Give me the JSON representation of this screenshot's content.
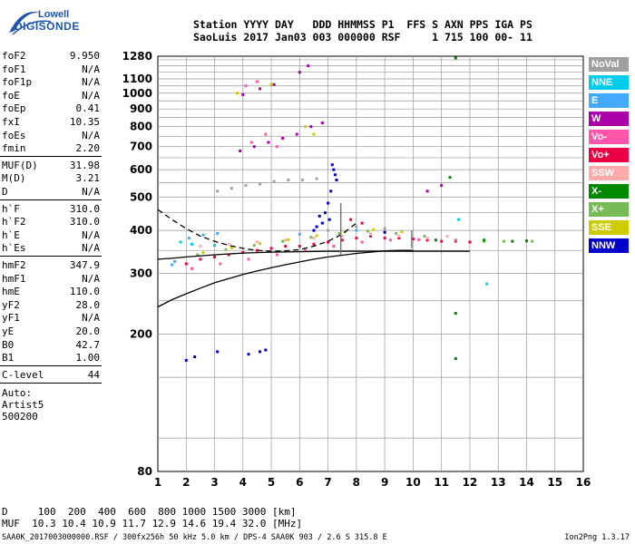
{
  "logo": {
    "line1": "Lowell",
    "line2": "DIGISONDE"
  },
  "header": {
    "line1": "Station YYYY DAY   DDD HHMMSS P1  FFS S AXN PPS IGA PS",
    "line2": "SaoLuis 2017 Jan03 003 000000 RSF     1 715 100 00- 11"
  },
  "params": [
    {
      "label": "foF2",
      "value": "9.950"
    },
    {
      "label": "foF1",
      "value": "N/A"
    },
    {
      "label": "foF1p",
      "value": "N/A"
    },
    {
      "label": "foE",
      "value": "N/A"
    },
    {
      "label": "foEp",
      "value": "0.41"
    },
    {
      "label": "fxI",
      "value": "10.35"
    },
    {
      "label": "foEs",
      "value": "N/A"
    },
    {
      "label": "fmin",
      "value": "2.20"
    },
    {
      "label": "MUF(D)",
      "value": "31.98"
    },
    {
      "label": "M(D)",
      "value": "3.21"
    },
    {
      "label": "D",
      "value": "N/A"
    },
    {
      "label": "h`F",
      "value": "310.0"
    },
    {
      "label": "h`F2",
      "value": "310.0"
    },
    {
      "label": "h`E",
      "value": "N/A"
    },
    {
      "label": "h`Es",
      "value": "N/A"
    },
    {
      "label": "hmF2",
      "value": "347.9"
    },
    {
      "label": "hmF1",
      "value": "N/A"
    },
    {
      "label": "hmE",
      "value": "110.0"
    },
    {
      "label": "yF2",
      "value": "28.0"
    },
    {
      "label": "yF1",
      "value": "N/A"
    },
    {
      "label": "yE",
      "value": "20.0"
    },
    {
      "label": "B0",
      "value": "42.7"
    },
    {
      "label": "B1",
      "value": "1.00"
    },
    {
      "label": "C-level",
      "value": "44"
    }
  ],
  "auto": {
    "line1": "Auto:",
    "line2": "Artist5",
    "line3": "500200"
  },
  "legend": [
    {
      "label": "NoVal",
      "color": "#a0a0a0"
    },
    {
      "label": "NNE",
      "color": "#00ccee"
    },
    {
      "label": "E",
      "color": "#44aaff"
    },
    {
      "label": "W",
      "color": "#aa00aa"
    },
    {
      "label": "Vo-",
      "color": "#ff55aa"
    },
    {
      "label": "Vo+",
      "color": "#ee0044"
    },
    {
      "label": "SSW",
      "color": "#ffaaaa"
    },
    {
      "label": "X-",
      "color": "#008800"
    },
    {
      "label": "X+",
      "color": "#77bb55"
    },
    {
      "label": "SSE",
      "color": "#cccc00"
    },
    {
      "label": "NNW",
      "color": "#0000cc"
    }
  ],
  "muf_table": {
    "line1": "D     100  200  400  600  800 1000 1500 3000 [km]",
    "line2": "MUF  10.3 10.4 10.9 11.7 12.9 14.6 19.4 32.0 [MHz]"
  },
  "footer": {
    "file": "SAA0K_2017003000000.RSF / 300fx256h 50 kHz 5.0 km / DPS-4 SAA0K 903 / 2.6 S 315.8 E",
    "version": "Ion2Png 1.3.17"
  },
  "chart_data": {
    "type": "scatter",
    "title": "",
    "xlabel": "",
    "ylabel": "",
    "x_scale": "linear",
    "y_scale": "log",
    "xlim": [
      1,
      16
    ],
    "ylim": [
      80,
      1280
    ],
    "x_ticks": [
      "1",
      "2",
      "3",
      "4",
      "5",
      "6",
      "7",
      "8",
      "9",
      "10",
      "11",
      "12",
      "13",
      "14",
      "15",
      "16"
    ],
    "y_ticks": [
      "80",
      "200",
      "300",
      "400",
      "500",
      "600",
      "700",
      "800",
      "900",
      "1000",
      "1100",
      "1280"
    ],
    "grid": true,
    "legend_position": "right",
    "series": [
      {
        "name": "NNW",
        "color": "#0000cc",
        "points": [
          [
            2.0,
            168
          ],
          [
            2.3,
            172
          ],
          [
            4.2,
            175
          ],
          [
            4.6,
            178
          ],
          [
            7.0,
            480
          ],
          [
            7.1,
            520
          ],
          [
            7.2,
            600
          ],
          [
            7.3,
            560
          ],
          [
            6.9,
            450
          ],
          [
            6.8,
            420
          ],
          [
            7.05,
            430
          ],
          [
            6.7,
            440
          ],
          [
            6.6,
            410
          ],
          [
            8.5,
            390
          ],
          [
            9.0,
            395
          ],
          [
            6.5,
            400
          ],
          [
            7.15,
            620
          ],
          [
            7.25,
            580
          ],
          [
            3.1,
            178
          ],
          [
            4.8,
            180
          ]
        ]
      },
      {
        "name": "Vo+",
        "color": "#ee0044",
        "points": [
          [
            2.0,
            320
          ],
          [
            2.5,
            330
          ],
          [
            3.0,
            335
          ],
          [
            3.5,
            340
          ],
          [
            4.0,
            345
          ],
          [
            4.5,
            350
          ],
          [
            5.0,
            355
          ],
          [
            5.5,
            360
          ],
          [
            6.0,
            360
          ],
          [
            6.5,
            365
          ],
          [
            7.0,
            370
          ],
          [
            7.5,
            375
          ],
          [
            8.0,
            380
          ],
          [
            8.5,
            385
          ],
          [
            9.0,
            380
          ],
          [
            9.5,
            380
          ],
          [
            10.0,
            378
          ],
          [
            10.5,
            375
          ],
          [
            11.0,
            372
          ],
          [
            11.5,
            372
          ],
          [
            12.0,
            370
          ],
          [
            8.2,
            420
          ],
          [
            7.8,
            430
          ]
        ]
      },
      {
        "name": "Vo-",
        "color": "#ff55aa",
        "points": [
          [
            2.2,
            310
          ],
          [
            3.2,
            320
          ],
          [
            4.2,
            330
          ],
          [
            5.2,
            340
          ],
          [
            6.2,
            350
          ],
          [
            7.2,
            360
          ],
          [
            8.2,
            370
          ],
          [
            9.2,
            375
          ],
          [
            10.2,
            376
          ],
          [
            11.5,
            375
          ],
          [
            4.3,
            720
          ],
          [
            4.8,
            760
          ],
          [
            5.2,
            700
          ],
          [
            4.1,
            1050
          ],
          [
            4.5,
            1080
          ]
        ]
      },
      {
        "name": "X+",
        "color": "#77bb55",
        "points": [
          [
            2.4,
            340
          ],
          [
            3.4,
            352
          ],
          [
            4.4,
            362
          ],
          [
            5.4,
            372
          ],
          [
            6.4,
            382
          ],
          [
            7.4,
            392
          ],
          [
            8.4,
            398
          ],
          [
            9.4,
            392
          ],
          [
            10.4,
            385
          ],
          [
            12.5,
            372
          ],
          [
            13.2,
            372
          ],
          [
            14.2,
            372
          ]
        ]
      },
      {
        "name": "X-",
        "color": "#008800",
        "points": [
          [
            11.5,
            230
          ],
          [
            11.5,
            1265
          ],
          [
            11.5,
            170
          ],
          [
            11.3,
            570
          ],
          [
            12.5,
            375
          ],
          [
            13.5,
            372
          ],
          [
            14.0,
            373
          ],
          [
            10.8,
            375
          ]
        ]
      },
      {
        "name": "SSE",
        "color": "#cccc00",
        "points": [
          [
            2.6,
            345
          ],
          [
            3.6,
            356
          ],
          [
            4.6,
            366
          ],
          [
            5.6,
            376
          ],
          [
            6.6,
            386
          ],
          [
            7.6,
            396
          ],
          [
            8.6,
            402
          ],
          [
            9.6,
            396
          ],
          [
            3.8,
            1000
          ],
          [
            5.0,
            1060
          ],
          [
            6.2,
            800
          ],
          [
            6.5,
            760
          ]
        ]
      },
      {
        "name": "W",
        "color": "#aa00aa",
        "points": [
          [
            3.9,
            680
          ],
          [
            4.4,
            700
          ],
          [
            4.9,
            720
          ],
          [
            5.4,
            740
          ],
          [
            5.9,
            760
          ],
          [
            6.4,
            800
          ],
          [
            6.8,
            820
          ],
          [
            4.0,
            990
          ],
          [
            4.6,
            1030
          ],
          [
            5.1,
            1060
          ],
          [
            6.0,
            1150
          ],
          [
            6.3,
            1200
          ],
          [
            10.5,
            520
          ],
          [
            11.0,
            540
          ]
        ]
      },
      {
        "name": "NNE",
        "color": "#00ccee",
        "points": [
          [
            1.8,
            370
          ],
          [
            2.2,
            365
          ],
          [
            3.0,
            362
          ],
          [
            12.6,
            280
          ],
          [
            11.6,
            430
          ]
        ]
      },
      {
        "name": "E",
        "color": "#44aaff",
        "points": [
          [
            2.1,
            380
          ],
          [
            2.6,
            388
          ],
          [
            3.1,
            392
          ],
          [
            1.5,
            318
          ],
          [
            1.6,
            325
          ],
          [
            6.0,
            390
          ],
          [
            8.0,
            400
          ]
        ]
      },
      {
        "name": "SSW",
        "color": "#ffaaaa",
        "points": [
          [
            2.5,
            360
          ],
          [
            3.5,
            365
          ],
          [
            4.5,
            370
          ],
          [
            5.5,
            375
          ],
          [
            6.5,
            380
          ],
          [
            7.5,
            385
          ],
          [
            8.5,
            390
          ],
          [
            9.5,
            385
          ],
          [
            10.5,
            380
          ],
          [
            11.2,
            385
          ]
        ]
      },
      {
        "name": "NoVal",
        "color": "#a0a0a0",
        "points": [
          [
            3.1,
            520
          ],
          [
            3.6,
            530
          ],
          [
            4.1,
            540
          ],
          [
            4.6,
            545
          ],
          [
            5.1,
            555
          ],
          [
            5.6,
            560
          ],
          [
            6.1,
            560
          ],
          [
            6.6,
            565
          ],
          [
            7.0,
            400
          ],
          [
            8.0,
            410
          ],
          [
            9.0,
            405
          ]
        ]
      }
    ],
    "traces": [
      {
        "name": "virtual-height trace",
        "color": "#000000",
        "style": "solid",
        "x": [
          1,
          1.5,
          2,
          2.5,
          3,
          3.5,
          4,
          4.5,
          5,
          5.5,
          6,
          6.5,
          7,
          7.5,
          8,
          8.5,
          9,
          9.5,
          10
        ],
        "y": [
          240,
          252,
          262,
          272,
          282,
          290,
          298,
          305,
          312,
          318,
          324,
          330,
          335,
          339,
          343,
          346,
          349,
          350,
          350
        ]
      },
      {
        "name": "profile trace upper",
        "color": "#000000",
        "style": "dashed",
        "x": [
          1,
          1.5,
          2,
          2.5,
          3,
          3.5,
          4,
          4.5,
          5,
          5.5,
          6,
          6.5,
          7,
          7.5,
          8
        ],
        "y": [
          460,
          430,
          405,
          385,
          372,
          362,
          355,
          350,
          348,
          349,
          352,
          360,
          372,
          390,
          420
        ]
      },
      {
        "name": "hmF2 trace",
        "color": "#000000",
        "style": "solid",
        "x": [
          1,
          1.5,
          2,
          3,
          4,
          5,
          6,
          7,
          8,
          9,
          10,
          11,
          12
        ],
        "y": [
          330,
          332,
          335,
          340,
          344,
          346,
          347,
          348,
          348,
          348,
          348,
          348,
          348
        ]
      }
    ],
    "vertical_markers": [
      {
        "x": 7.45,
        "ymin": 340,
        "ymax": 480,
        "color": "#777777"
      },
      {
        "x": 9.95,
        "ymin": 355,
        "ymax": 400,
        "color": "#777777"
      }
    ]
  }
}
